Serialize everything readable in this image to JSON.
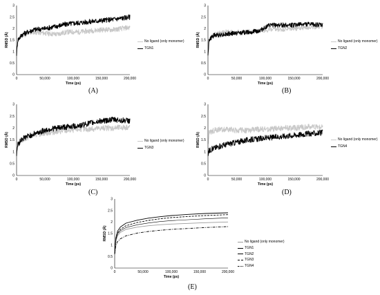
{
  "chart_data": [
    {
      "type": "line",
      "panel_label": "(A)",
      "xlabel": "Time (ps)",
      "ylabel": "RMSD (Å)",
      "xlim": [
        0,
        200000
      ],
      "ylim": [
        0,
        3
      ],
      "xticks": [
        "0",
        "50,000",
        "100,000",
        "150,000",
        "200,000"
      ],
      "yticks": [
        "0",
        "0.5",
        "1",
        "1.5",
        "2",
        "2.5",
        "3"
      ],
      "noise": 0.11,
      "series": [
        {
          "name": "No ligand (only monomer)",
          "color": "#c8c8c8",
          "x": [
            0,
            2000,
            10000,
            30000,
            50000,
            70000,
            90000,
            110000,
            130000,
            150000,
            170000,
            200000
          ],
          "y": [
            0.9,
            1.5,
            1.7,
            1.85,
            1.8,
            1.75,
            1.85,
            1.85,
            1.9,
            1.95,
            1.95,
            2.05
          ]
        },
        {
          "name": "TGN1",
          "color": "#000000",
          "x": [
            0,
            2000,
            10000,
            30000,
            50000,
            70000,
            90000,
            110000,
            130000,
            150000,
            170000,
            200000
          ],
          "y": [
            0.9,
            1.5,
            1.75,
            1.95,
            2.0,
            2.1,
            2.2,
            2.25,
            2.3,
            2.35,
            2.4,
            2.5
          ]
        }
      ]
    },
    {
      "type": "line",
      "panel_label": "(B)",
      "xlabel": "Time (ps)",
      "ylabel": "RMSD (Å)",
      "xlim": [
        0,
        200000
      ],
      "ylim": [
        0,
        3
      ],
      "xticks": [
        "0",
        "50,000",
        "100,000",
        "150,000",
        "200,000"
      ],
      "yticks": [
        "0",
        "0.5",
        "1",
        "1.5",
        "2",
        "2.5",
        "3"
      ],
      "noise": 0.1,
      "series": [
        {
          "name": "No ligand (only monomer)",
          "color": "#c8c8c8",
          "x": [
            0,
            2000,
            10000,
            30000,
            50000,
            70000,
            90000,
            110000,
            130000,
            150000,
            170000,
            200000
          ],
          "y": [
            0.9,
            1.5,
            1.75,
            1.85,
            1.85,
            1.85,
            1.9,
            1.95,
            1.95,
            2.0,
            2.05,
            2.1
          ]
        },
        {
          "name": "TGN2",
          "color": "#000000",
          "x": [
            0,
            2000,
            10000,
            30000,
            50000,
            70000,
            90000,
            100000,
            110000,
            130000,
            150000,
            170000,
            200000
          ],
          "y": [
            0.9,
            1.5,
            1.7,
            1.75,
            1.8,
            1.85,
            1.9,
            2.05,
            2.15,
            2.15,
            2.15,
            2.2,
            2.15
          ]
        }
      ]
    },
    {
      "type": "line",
      "panel_label": "(C)",
      "xlabel": "Time (ps)",
      "ylabel": "RMSD (Å)",
      "xlim": [
        0,
        200000
      ],
      "ylim": [
        0,
        3
      ],
      "xticks": [
        "0",
        "50,000",
        "100,000",
        "150,000",
        "200,000"
      ],
      "yticks": [
        "0",
        "0.5",
        "1",
        "1.5",
        "2",
        "2.5",
        "3"
      ],
      "noise": 0.12,
      "series": [
        {
          "name": "No ligand (only monomer)",
          "color": "#c8c8c8",
          "x": [
            0,
            2000,
            10000,
            30000,
            50000,
            70000,
            90000,
            110000,
            130000,
            150000,
            170000,
            200000
          ],
          "y": [
            0.9,
            1.3,
            1.5,
            1.7,
            1.8,
            1.85,
            1.9,
            1.95,
            1.95,
            2.0,
            2.0,
            2.05
          ]
        },
        {
          "name": "TGN3",
          "color": "#000000",
          "x": [
            0,
            2000,
            10000,
            30000,
            50000,
            70000,
            90000,
            110000,
            130000,
            150000,
            170000,
            200000
          ],
          "y": [
            0.9,
            1.3,
            1.55,
            1.75,
            1.9,
            2.0,
            2.05,
            2.1,
            2.2,
            2.3,
            2.35,
            2.3
          ]
        }
      ]
    },
    {
      "type": "line",
      "panel_label": "(D)",
      "xlabel": "Time (ps)",
      "ylabel": "RMSD (Å)",
      "xlim": [
        0,
        200000
      ],
      "ylim": [
        0,
        3
      ],
      "xticks": [
        "0",
        "50,000",
        "100,000",
        "150,000",
        "200,000"
      ],
      "yticks": [
        "0",
        "0.5",
        "1",
        "1.5",
        "2",
        "2.5",
        "3"
      ],
      "noise": 0.12,
      "series": [
        {
          "name": "No ligand (only monomer)",
          "color": "#c8c8c8",
          "x": [
            0,
            2000,
            10000,
            30000,
            50000,
            70000,
            90000,
            110000,
            130000,
            150000,
            170000,
            200000
          ],
          "y": [
            1.3,
            1.8,
            1.9,
            1.95,
            1.9,
            1.9,
            1.95,
            1.95,
            2.0,
            2.0,
            2.05,
            2.05
          ]
        },
        {
          "name": "TGN4",
          "color": "#000000",
          "x": [
            0,
            2000,
            10000,
            30000,
            50000,
            70000,
            90000,
            110000,
            130000,
            150000,
            170000,
            200000
          ],
          "y": [
            0.9,
            1.05,
            1.15,
            1.3,
            1.4,
            1.5,
            1.55,
            1.6,
            1.65,
            1.7,
            1.75,
            1.8
          ]
        }
      ]
    },
    {
      "type": "line",
      "panel_label": "(E)",
      "xlabel": "Time (ps)",
      "ylabel": "RMSD (Å)",
      "xlim": [
        0,
        200000
      ],
      "ylim": [
        0,
        3
      ],
      "xticks": [
        "0",
        "50,000",
        "100,000",
        "150,000",
        "200,000"
      ],
      "yticks": [
        "0",
        "0.5",
        "1",
        "1.5",
        "2",
        "2.5",
        "3"
      ],
      "noise": 0,
      "series": [
        {
          "name": "No ligand (only monomer)",
          "color": "#9a9a9a",
          "dash": "",
          "x": [
            0,
            2000,
            5000,
            10000,
            20000,
            40000,
            60000,
            80000,
            100000,
            130000,
            160000,
            200000
          ],
          "y": [
            0.6,
            1.15,
            1.4,
            1.55,
            1.68,
            1.78,
            1.84,
            1.88,
            1.91,
            1.94,
            1.97,
            2.0
          ]
        },
        {
          "name": "TGN1",
          "color": "#000000",
          "dash": "",
          "x": [
            0,
            2000,
            5000,
            10000,
            20000,
            40000,
            60000,
            80000,
            100000,
            130000,
            160000,
            200000
          ],
          "y": [
            0.6,
            1.3,
            1.6,
            1.78,
            1.95,
            2.08,
            2.17,
            2.23,
            2.28,
            2.33,
            2.37,
            2.4
          ]
        },
        {
          "name": "TGN2",
          "color": "#000000",
          "dash": "",
          "x": [
            0,
            2000,
            5000,
            10000,
            20000,
            40000,
            60000,
            80000,
            100000,
            130000,
            160000,
            200000
          ],
          "y": [
            0.6,
            1.22,
            1.48,
            1.62,
            1.76,
            1.88,
            1.96,
            2.02,
            2.06,
            2.1,
            2.14,
            2.18
          ]
        },
        {
          "name": "TGN3",
          "color": "#000000",
          "dash": "3,1.5",
          "x": [
            0,
            2000,
            5000,
            10000,
            20000,
            40000,
            60000,
            80000,
            100000,
            130000,
            160000,
            200000
          ],
          "y": [
            0.6,
            1.25,
            1.52,
            1.68,
            1.84,
            1.98,
            2.07,
            2.14,
            2.19,
            2.24,
            2.28,
            2.32
          ]
        },
        {
          "name": "TGN4",
          "color": "#000000",
          "dash": "4,1.5,1,1.5",
          "x": [
            0,
            2000,
            5000,
            10000,
            20000,
            40000,
            60000,
            80000,
            100000,
            130000,
            160000,
            200000
          ],
          "y": [
            0.6,
            0.98,
            1.15,
            1.27,
            1.4,
            1.52,
            1.59,
            1.64,
            1.68,
            1.72,
            1.76,
            1.8
          ]
        }
      ]
    }
  ]
}
